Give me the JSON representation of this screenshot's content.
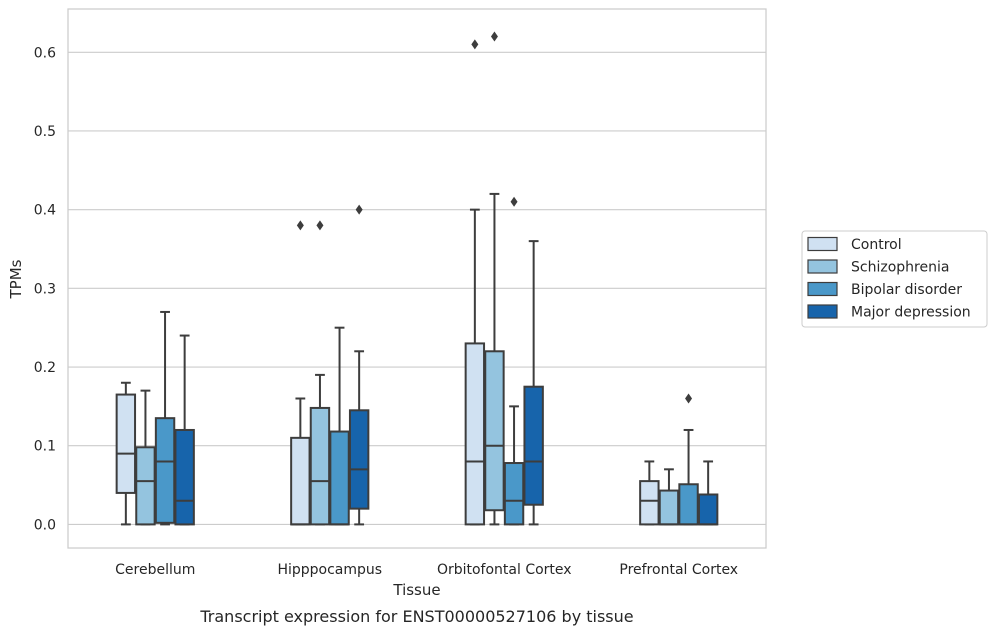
{
  "chart_data": {
    "type": "box",
    "title": "",
    "xlabel": "Tissue",
    "ylabel": "TPMs",
    "caption": "Transcript expression for ENST00000527106 by tissue",
    "ylim": [
      -0.03,
      0.655
    ],
    "yticks": [
      "0.0",
      "0.1",
      "0.2",
      "0.3",
      "0.4",
      "0.5",
      "0.6"
    ],
    "grid": "horizontal",
    "legend_position": "right",
    "categories": [
      "Cerebellum",
      "Hipppocampus",
      "Orbitofontal Cortex",
      "Prefrontal Cortex"
    ],
    "series": [
      {
        "name": "Control",
        "color": "#d0e1f2",
        "boxes": [
          {
            "min": 0.0,
            "q1": 0.04,
            "median": 0.09,
            "q3": 0.165,
            "max": 0.18,
            "outliers": []
          },
          {
            "min": 0.0,
            "q1": 0.0,
            "median": 0.0,
            "q3": 0.11,
            "max": 0.16,
            "outliers": [
              0.38
            ]
          },
          {
            "min": 0.0,
            "q1": 0.0,
            "median": 0.08,
            "q3": 0.23,
            "max": 0.4,
            "outliers": [
              0.61
            ]
          },
          {
            "min": 0.0,
            "q1": 0.0,
            "median": 0.03,
            "q3": 0.055,
            "max": 0.08,
            "outliers": []
          }
        ]
      },
      {
        "name": "Schizophrenia",
        "color": "#94c4df",
        "boxes": [
          {
            "min": 0.0,
            "q1": 0.0,
            "median": 0.055,
            "q3": 0.098,
            "max": 0.17,
            "outliers": []
          },
          {
            "min": 0.0,
            "q1": 0.0,
            "median": 0.055,
            "q3": 0.148,
            "max": 0.19,
            "outliers": [
              0.38
            ]
          },
          {
            "min": 0.0,
            "q1": 0.018,
            "median": 0.1,
            "q3": 0.22,
            "max": 0.42,
            "outliers": [
              0.62
            ]
          },
          {
            "min": 0.0,
            "q1": 0.0,
            "median": 0.0,
            "q3": 0.043,
            "max": 0.07,
            "outliers": []
          }
        ]
      },
      {
        "name": "Bipolar disorder",
        "color": "#4a98c9",
        "boxes": [
          {
            "min": 0.0,
            "q1": 0.002,
            "median": 0.08,
            "q3": 0.135,
            "max": 0.27,
            "outliers": []
          },
          {
            "min": 0.0,
            "q1": 0.0,
            "median": 0.0,
            "q3": 0.118,
            "max": 0.25,
            "outliers": []
          },
          {
            "min": 0.0,
            "q1": 0.0,
            "median": 0.03,
            "q3": 0.078,
            "max": 0.15,
            "outliers": [
              0.41
            ]
          },
          {
            "min": 0.0,
            "q1": 0.0,
            "median": 0.0,
            "q3": 0.051,
            "max": 0.12,
            "outliers": [
              0.16
            ]
          }
        ]
      },
      {
        "name": "Major depression",
        "color": "#1764ab",
        "boxes": [
          {
            "min": 0.0,
            "q1": 0.0,
            "median": 0.03,
            "q3": 0.12,
            "max": 0.24,
            "outliers": []
          },
          {
            "min": 0.0,
            "q1": 0.02,
            "median": 0.07,
            "q3": 0.145,
            "max": 0.22,
            "outliers": [
              0.4
            ]
          },
          {
            "min": 0.0,
            "q1": 0.025,
            "median": 0.08,
            "q3": 0.175,
            "max": 0.36,
            "outliers": []
          },
          {
            "min": 0.0,
            "q1": 0.0,
            "median": 0.0,
            "q3": 0.038,
            "max": 0.08,
            "outliers": []
          }
        ]
      }
    ]
  }
}
